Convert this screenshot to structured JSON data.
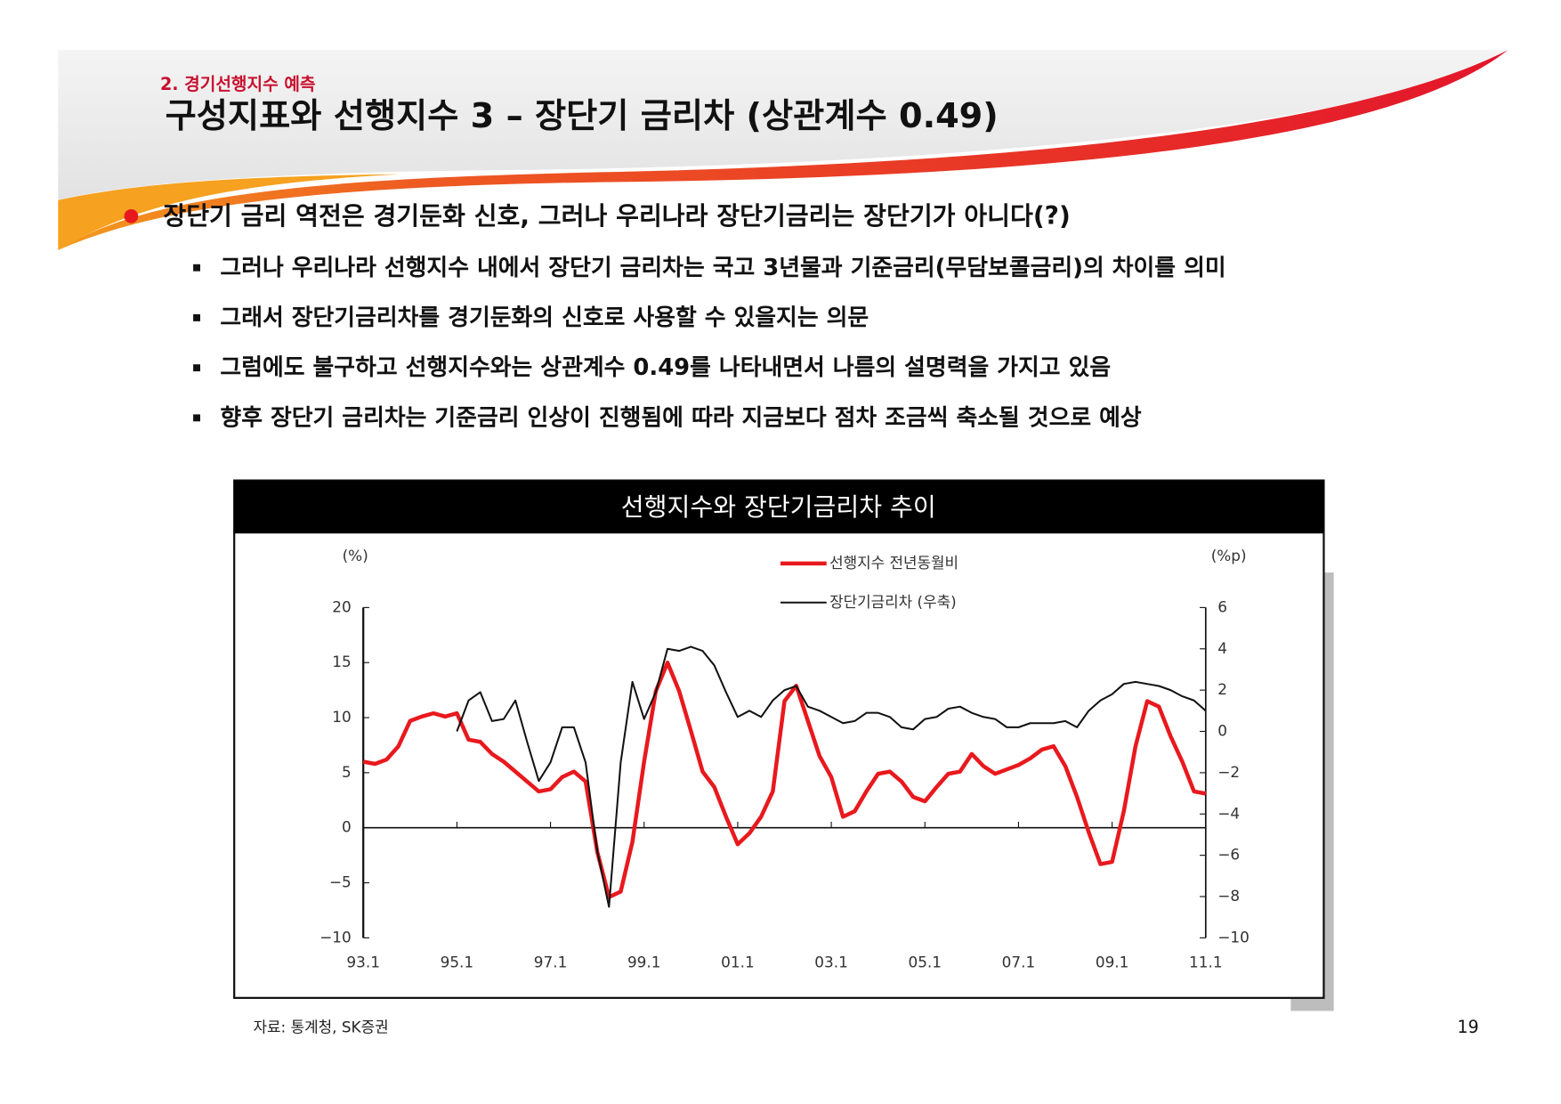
{
  "header": {
    "section": "2. 경기선행지수 예측",
    "title": "구성지표와 선행지수 3 – 장단기 금리차 (상관계수 0.49)"
  },
  "bullets": {
    "main": "장단기 금리 역전은 경기둔화 신호, 그러나 우리나라 장단기금리는 장단기가 아니다(?)",
    "items": [
      "그러나 우리나라 선행지수 내에서 장단기 금리차는 국고 3년물과 기준금리(무담보콜금리)의 차이를 의미",
      "그래서 장단기금리차를 경기둔화의 신호로 사용할 수 있을지는 의문",
      "그럼에도 불구하고 선행지수와는 상관계수 0.49를 나타내면서 나름의 설명력을 가지고 있음",
      "향후 장단기 금리차는 기준금리 인상이 진행됨에 따라 지금보다 점차 조금씩 축소될 것으로 예상"
    ]
  },
  "chart_data": {
    "type": "line",
    "title": "선행지수와 장단기금리차 추이",
    "ylabel": "(%)",
    "y2label": "(%p)",
    "x": [
      1993,
      1993.25,
      1993.5,
      1993.75,
      1994,
      1994.25,
      1994.5,
      1994.75,
      1995,
      1995.25,
      1995.5,
      1995.75,
      1996,
      1996.25,
      1996.5,
      1996.75,
      1997,
      1997.25,
      1997.5,
      1997.75,
      1998,
      1998.25,
      1998.5,
      1998.75,
      1999,
      1999.25,
      1999.5,
      1999.75,
      2000,
      2000.25,
      2000.5,
      2000.75,
      2001,
      2001.25,
      2001.5,
      2001.75,
      2002,
      2002.25,
      2002.5,
      2002.75,
      2003,
      2003.25,
      2003.5,
      2003.75,
      2004,
      2004.25,
      2004.5,
      2004.75,
      2005,
      2005.25,
      2005.5,
      2005.75,
      2006,
      2006.25,
      2006.5,
      2006.75,
      2007,
      2007.25,
      2007.5,
      2007.75,
      2008,
      2008.25,
      2008.5,
      2008.75,
      2009,
      2009.25,
      2009.5,
      2009.75,
      2010,
      2010.25,
      2010.5,
      2010.75,
      2011
    ],
    "series": [
      {
        "name": "선행지수 전년동월비",
        "color": "#e8191e",
        "values": [
          6,
          5.8,
          6.2,
          7.4,
          9.7,
          10.1,
          10.4,
          10.1,
          10.4,
          8,
          7.8,
          6.7,
          6,
          5.1,
          4.2,
          3.3,
          3.5,
          4.6,
          5.1,
          4.2,
          -2.2,
          -6.3,
          -5.8,
          -1.3,
          6,
          12.4,
          15,
          12.4,
          8.8,
          5.1,
          3.7,
          1,
          -1.5,
          -0.5,
          1,
          3.3,
          11.5,
          12.9,
          9.7,
          6.5,
          4.6,
          1,
          1.5,
          3.3,
          4.9,
          5.1,
          4.2,
          2.8,
          2.4,
          3.7,
          4.9,
          5.1,
          6.7,
          5.6,
          4.9,
          5.3,
          5.7,
          6.3,
          7.1,
          7.4,
          5.6,
          2.8,
          -0.4,
          -3.3,
          -3.1,
          1.5,
          7.4,
          11.5,
          11,
          8.3,
          6,
          3.3,
          3.1
        ]
      },
      {
        "name": "장단기금리차 (우축)",
        "color": "#111111",
        "axis": "y2",
        "values": [
          null,
          null,
          null,
          null,
          null,
          null,
          null,
          null,
          0,
          1.5,
          1.9,
          0.5,
          0.6,
          1.5,
          -0.5,
          -2.4,
          -1.5,
          0.2,
          0.2,
          -1.5,
          -5.8,
          -8.5,
          -1.5,
          2.4,
          0.6,
          1.9,
          4,
          3.9,
          4.1,
          3.9,
          3.2,
          1.9,
          0.7,
          1,
          0.7,
          1.5,
          2,
          2.2,
          1.2,
          1,
          0.7,
          0.4,
          0.5,
          0.9,
          0.9,
          0.7,
          0.2,
          0.1,
          0.6,
          0.7,
          1.1,
          1.2,
          0.9,
          0.7,
          0.6,
          0.2,
          0.2,
          0.4,
          0.4,
          0.4,
          0.5,
          0.2,
          1,
          1.5,
          1.8,
          2.3,
          2.4,
          2.3,
          2.2,
          2,
          1.7,
          1.5,
          1
        ]
      }
    ],
    "xlim": [
      1993,
      2011
    ],
    "xticks": [
      {
        "value": 1993,
        "label": "93.1"
      },
      {
        "value": 1995,
        "label": "95.1"
      },
      {
        "value": 1997,
        "label": "97.1"
      },
      {
        "value": 1999,
        "label": "99.1"
      },
      {
        "value": 2001,
        "label": "01.1"
      },
      {
        "value": 2003,
        "label": "03.1"
      },
      {
        "value": 2005,
        "label": "05.1"
      },
      {
        "value": 2007,
        "label": "07.1"
      },
      {
        "value": 2009,
        "label": "09.1"
      },
      {
        "value": 2011,
        "label": "11.1"
      }
    ],
    "ylim": [
      -10,
      20
    ],
    "yticks": [
      20,
      15,
      10,
      5,
      0,
      {
        "value": -5,
        "label": "−5"
      },
      {
        "value": -10,
        "label": "−10"
      }
    ],
    "y2lim": [
      -10,
      6
    ],
    "y2ticks": [
      6,
      4,
      2,
      0,
      {
        "value": -2,
        "label": "−2"
      },
      {
        "value": -4,
        "label": "−4"
      },
      {
        "value": -6,
        "label": "−6"
      },
      {
        "value": -8,
        "label": "−8"
      },
      {
        "value": -10,
        "label": "−10"
      }
    ]
  },
  "footer": {
    "source": "자료: 통계청, SK증권",
    "page": "19"
  }
}
